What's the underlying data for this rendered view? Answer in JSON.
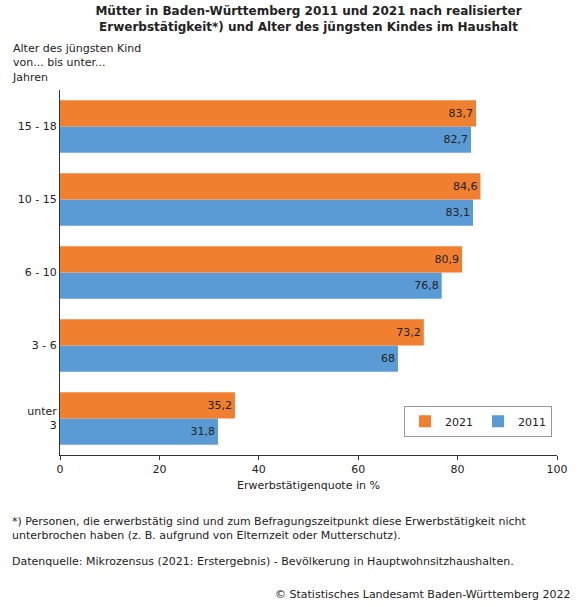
{
  "chart_data": {
    "type": "bar",
    "orientation": "horizontal",
    "title": "Mütter in Baden-Württemberg 2011 und 2021 nach realisierter\nErwerbstätigkeit*) und Alter des jüngsten Kindes im Haushalt",
    "y_label": "Alter des jüngsten Kind\nvon... bis unter...\nJahren",
    "x_label": "Erwerbstätigenquote in %",
    "categories": [
      "unter\n3",
      "3 - 6",
      "6 - 10",
      "10 - 15",
      "15 - 18"
    ],
    "series": [
      {
        "name": "2021",
        "color": "#F07F2F",
        "values": [
          35.2,
          73.2,
          80.9,
          84.6,
          83.7
        ],
        "value_labels": [
          "35,2",
          "73,2",
          "80,9",
          "84,6",
          "83,7"
        ]
      },
      {
        "name": "2011",
        "color": "#5B9BD5",
        "values": [
          31.8,
          68,
          76.8,
          83.1,
          82.7
        ],
        "value_labels": [
          "31,8",
          "68",
          "76,8",
          "83,1",
          "82,7"
        ]
      }
    ],
    "xlim": [
      0,
      100
    ],
    "xticks": [
      0,
      20,
      40,
      60,
      80,
      100
    ],
    "grid": false,
    "legend": "lower right",
    "data_labels": true,
    "footnote": "*) Personen, die erwerbstätig sind und zum Befragungszeitpunkt diese Erwerbstätigkeit nicht\nunterbrochen haben (z. B. aufgrund von Elternzeit oder Mutterschutz).",
    "source": "Datenquelle: Mikrozensus (2021: Erstergebnis) - Bevölkerung in Hauptwohnsitzhaushalten.",
    "copyright": "© Statistisches Landesamt Baden-Württemberg 2022"
  }
}
